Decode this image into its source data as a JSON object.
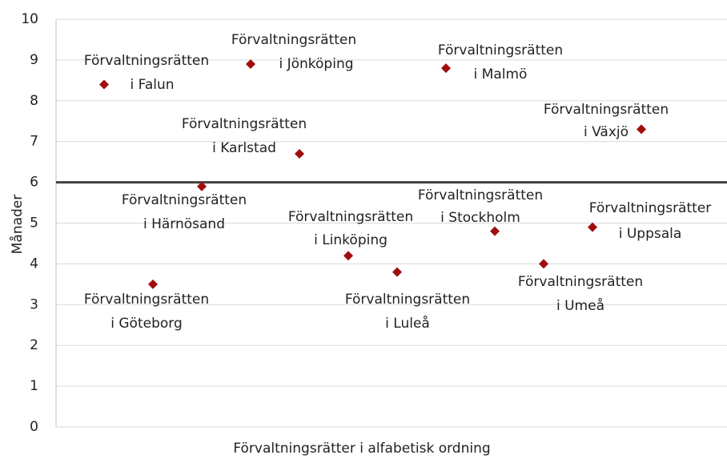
{
  "chart_data": {
    "type": "scatter",
    "categories": [
      [
        "Förvaltningsrätten",
        "i Falun"
      ],
      [
        "Förvaltningsrätten",
        "i Göteborg"
      ],
      [
        "Förvaltningsrätten",
        "i Härnösand"
      ],
      [
        "Förvaltningsrätten",
        "i Jönköping"
      ],
      [
        "Förvaltningsrätten",
        "i Karlstad"
      ],
      [
        "Förvaltningsrätten",
        "i Linköping"
      ],
      [
        "Förvaltningsrätten",
        "i Luleå"
      ],
      [
        "Förvaltningsrätten",
        "i Malmö"
      ],
      [
        "Förvaltningsrätten",
        "i Stockholm"
      ],
      [
        "Förvaltningsrätten",
        "i Umeå"
      ],
      [
        "Förvaltningsrätter",
        "i Uppsala"
      ],
      [
        "Förvaltningsrätten",
        "i Växjö"
      ]
    ],
    "values": [
      8.4,
      3.5,
      5.9,
      8.9,
      6.7,
      4.2,
      3.8,
      8.8,
      4.8,
      4.0,
      4.9,
      7.3
    ],
    "color": "#a00d0d",
    "ylabel": "Månader",
    "xlabel": "Förvaltningsrätter i alfabetisk ordning",
    "ylim": [
      0,
      10
    ],
    "yticks": [
      0,
      1,
      2,
      3,
      4,
      5,
      6,
      7,
      8,
      9,
      10
    ],
    "grid": true,
    "reference_line": 6
  }
}
